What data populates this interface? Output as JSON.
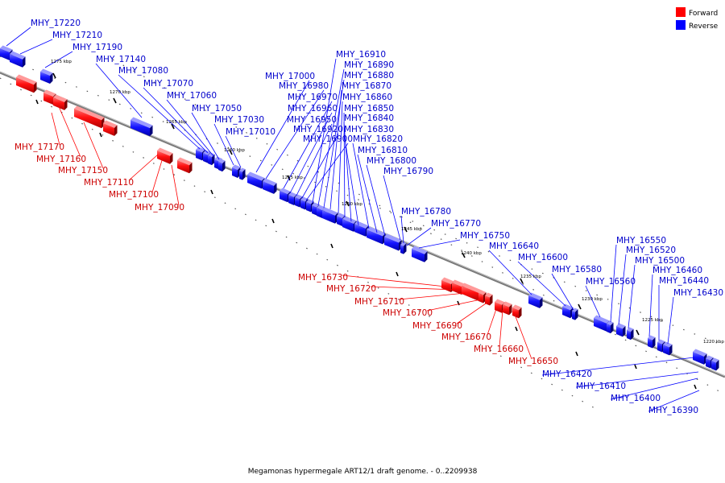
{
  "caption": "Megamonas hypermegale ART12/1 draft genome. - 0..2209938",
  "legend": {
    "forward_label": "Forward",
    "reverse_label": "Reverse",
    "forward_color": "#ff0000",
    "reverse_color": "#0000ff"
  },
  "ticks": [
    "1275 kbp",
    "1270 kbp",
    "1265 kbp",
    "1260 kbp",
    "1255 kbp",
    "1250 kbp",
    "1245 kbp",
    "1240 kbp",
    "1235 kbp",
    "1230 kbp",
    "1225 kbp",
    "1220 kbp"
  ],
  "reverse_labels": [
    "MHY_17220",
    "MHY_17210",
    "MHY_17190",
    "MHY_17140",
    "MHY_17080",
    "MHY_17070",
    "MHY_17060",
    "MHY_17050",
    "MHY_17030",
    "MHY_17010",
    "MHY_17000",
    "MHY_16980",
    "MHY_16970",
    "MHY_16960",
    "MHY_16950",
    "MHY_16920",
    "MHY_16900",
    "MHY_16910",
    "MHY_16890",
    "MHY_16880",
    "MHY_16870",
    "MHY_16860",
    "MHY_16850",
    "MHY_16840",
    "MHY_16830",
    "MHY_16820",
    "MHY_16810",
    "MHY_16800",
    "MHY_16790",
    "MHY_16780",
    "MHY_16770",
    "MHY_16750",
    "MHY_16640",
    "MHY_16600",
    "MHY_16580",
    "MHY_16560",
    "MHY_16550",
    "MHY_16520",
    "MHY_16500",
    "MHY_16460",
    "MHY_16440",
    "MHY_16430",
    "MHY_16420",
    "MHY_16410",
    "MHY_16400",
    "MHY_16390"
  ],
  "forward_labels": [
    "MHY_17170",
    "MHY_17160",
    "MHY_17150",
    "MHY_17110",
    "MHY_17100",
    "MHY_17090",
    "MHY_16730",
    "MHY_16720",
    "MHY_16710",
    "MHY_16700",
    "MHY_16690",
    "MHY_16670",
    "MHY_16660",
    "MHY_16650"
  ]
}
